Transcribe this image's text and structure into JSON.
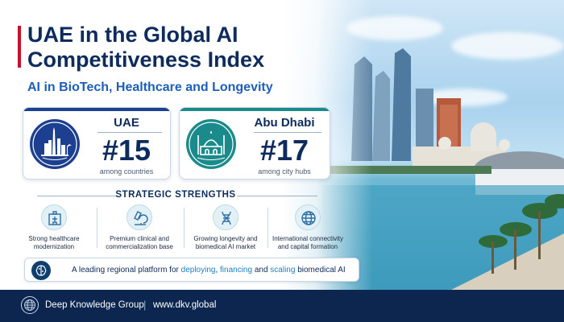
{
  "header": {
    "title": "UAE in the Global AI Competitiveness Index",
    "subtitle": "AI in BioTech, Healthcare and Longevity",
    "accent_color": "#c8102e",
    "title_color": "#0d2b5c"
  },
  "rankings": [
    {
      "name": "UAE",
      "rank": "#15",
      "note": "among countries",
      "icon": "dubai-skyline-icon",
      "accent_color": "#1d3f8f"
    },
    {
      "name": "Abu Dhabi",
      "rank": "#17",
      "note": "among city hubs",
      "icon": "grand-mosque-icon",
      "accent_color": "#1a8a8a"
    }
  ],
  "strengths": {
    "title": "STRATEGIC STRENGTHS",
    "items": [
      {
        "label_line1": "Strong healthcare",
        "label_line2": "modernization",
        "icon": "hospital-icon"
      },
      {
        "label_line1": "Premium clinical and",
        "label_line2": "commercialization base",
        "icon": "microscope-icon"
      },
      {
        "label_line1": "Growing longevity and",
        "label_line2": "biomedical AI market",
        "icon": "dna-icon"
      },
      {
        "label_line1": "International connectivity",
        "label_line2": "and capital formation",
        "icon": "globe-icon"
      }
    ]
  },
  "banner": {
    "icon": "brain-icon",
    "prefix": "A leading regional platform for ",
    "hl1": "deploying",
    "sep1": ", ",
    "hl2": "financing",
    "sep2": " and ",
    "hl3": "scaling",
    "suffix": " biomedical AI"
  },
  "footer": {
    "org": "Deep Knowledge Group",
    "separator": "|",
    "url": "www.dkv.global",
    "logo_icon": "globe-network-icon"
  }
}
